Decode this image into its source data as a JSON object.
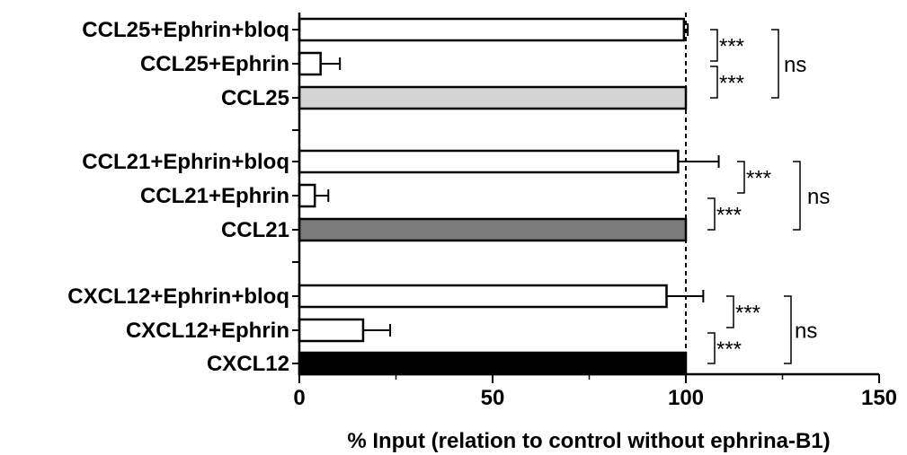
{
  "chart_data": {
    "type": "bar",
    "orientation": "horizontal",
    "categories": [
      "CCL25+Ephrin+bloq",
      "CCL25+Ephrin",
      "CCL25",
      "CCL21+Ephrin+bloq",
      "CCL21+Ephrin",
      "CCL21",
      "CXCL12+Ephrin+bloq",
      "CXCL12+Ephrin",
      "CXCL12"
    ],
    "values": [
      99.5,
      5.5,
      100,
      98,
      4,
      100,
      95,
      16.5,
      100
    ],
    "errors": [
      1,
      5,
      0,
      10.5,
      3.5,
      0,
      9.5,
      7,
      0
    ],
    "colors": [
      "#ffffff",
      "#ffffff",
      "#d4d4d4",
      "#ffffff",
      "#ffffff",
      "#7a7a7a",
      "#ffffff",
      "#ffffff",
      "#000000"
    ],
    "xlabel": "% Input (relation to control without ephrina-B1)",
    "xlim": [
      0,
      150
    ],
    "xticks": [
      "0",
      "50",
      "100",
      "150"
    ],
    "reference_line": 100,
    "significance": [
      {
        "from": 0,
        "to": 1,
        "label": "***"
      },
      {
        "from": 1,
        "to": 2,
        "label": "***"
      },
      {
        "from": 0,
        "to": 2,
        "label": "ns"
      },
      {
        "from": 3,
        "to": 4,
        "label": "***"
      },
      {
        "from": 4,
        "to": 5,
        "label": "***"
      },
      {
        "from": 3,
        "to": 5,
        "label": "ns"
      },
      {
        "from": 6,
        "to": 7,
        "label": "***"
      },
      {
        "from": 7,
        "to": 8,
        "label": "***"
      },
      {
        "from": 6,
        "to": 8,
        "label": "ns"
      }
    ]
  }
}
